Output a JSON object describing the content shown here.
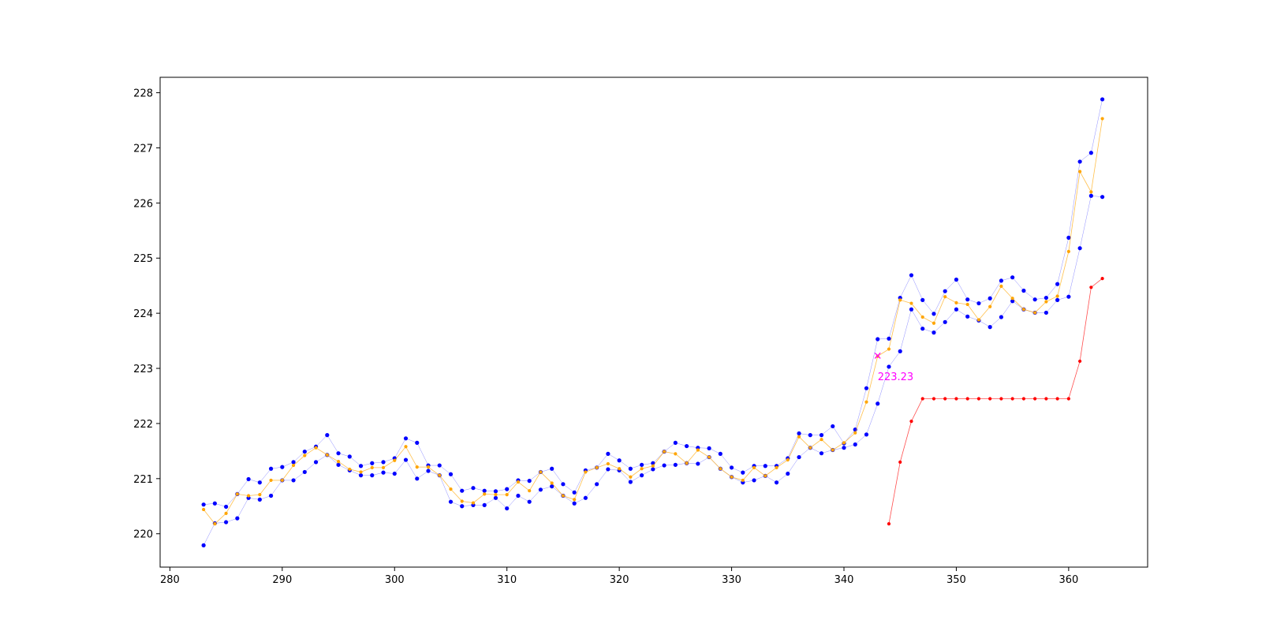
{
  "chart_data": {
    "type": "line",
    "x": [
      283,
      284,
      285,
      286,
      287,
      288,
      289,
      290,
      291,
      292,
      293,
      294,
      295,
      296,
      297,
      298,
      299,
      300,
      301,
      302,
      303,
      304,
      305,
      306,
      307,
      308,
      309,
      310,
      311,
      312,
      313,
      314,
      315,
      316,
      317,
      318,
      319,
      320,
      321,
      322,
      323,
      324,
      325,
      326,
      327,
      328,
      329,
      330,
      331,
      332,
      333,
      334,
      335,
      336,
      337,
      338,
      339,
      340,
      341,
      342,
      343,
      344,
      345,
      346,
      347,
      348,
      349,
      350,
      351,
      352,
      353,
      354,
      355,
      356,
      357,
      358,
      359,
      360,
      361,
      362,
      363
    ],
    "series": [
      {
        "color": "#0000ff",
        "values": [
          220.53,
          220.55,
          220.49,
          220.72,
          220.99,
          220.93,
          221.18,
          221.21,
          221.3,
          221.49,
          221.58,
          221.79,
          221.46,
          221.4,
          221.23,
          221.28,
          221.3,
          221.37,
          221.73,
          221.65,
          221.24,
          221.24,
          221.08,
          220.78,
          220.83,
          220.78,
          220.77,
          220.81,
          220.97,
          220.96,
          221.12,
          221.18,
          220.9,
          220.75,
          221.15,
          221.2,
          221.45,
          221.33,
          221.18,
          221.25,
          221.28,
          221.49,
          221.65,
          221.59,
          221.56,
          221.55,
          221.45,
          221.2,
          221.11,
          221.23,
          221.23,
          221.23,
          221.37,
          221.82,
          221.79,
          221.79,
          221.95,
          221.64,
          221.89,
          222.64,
          223.53,
          223.54,
          224.28,
          224.69,
          224.24,
          223.99,
          224.4,
          224.61,
          224.25,
          224.18,
          224.27,
          224.59,
          224.65,
          224.41,
          224.25,
          224.28,
          224.53,
          225.37,
          226.75,
          226.91,
          227.88
        ]
      },
      {
        "color": "#0000ff",
        "values": [
          219.79,
          220.19,
          220.21,
          220.28,
          220.65,
          220.62,
          220.69,
          220.97,
          220.97,
          221.12,
          221.3,
          221.43,
          221.25,
          221.15,
          221.06,
          221.06,
          221.11,
          221.09,
          221.34,
          221.0,
          221.14,
          221.06,
          220.58,
          220.5,
          220.52,
          220.52,
          220.65,
          220.46,
          220.69,
          220.58,
          220.8,
          220.86,
          220.69,
          220.55,
          220.65,
          220.9,
          221.17,
          221.15,
          220.94,
          221.06,
          221.17,
          221.24,
          221.25,
          221.28,
          221.27,
          221.39,
          221.18,
          221.03,
          220.93,
          220.97,
          221.05,
          220.93,
          221.09,
          221.39,
          221.56,
          221.46,
          221.52,
          221.56,
          221.62,
          221.8,
          222.36,
          223.03,
          223.31,
          224.07,
          223.72,
          223.65,
          223.84,
          224.07,
          223.94,
          223.87,
          223.75,
          223.93,
          224.22,
          224.07,
          224.01,
          224.01,
          224.24,
          224.3,
          225.18,
          226.13,
          226.11
        ]
      },
      {
        "color": "#ffa500",
        "values": [
          220.44,
          220.18,
          220.37,
          220.72,
          220.69,
          220.71,
          220.97,
          220.97,
          221.24,
          221.42,
          221.56,
          221.43,
          221.31,
          221.17,
          221.12,
          221.2,
          221.2,
          221.33,
          221.58,
          221.21,
          221.21,
          221.06,
          220.81,
          220.59,
          220.56,
          220.72,
          220.71,
          220.71,
          220.94,
          220.78,
          221.12,
          220.92,
          220.69,
          220.62,
          221.12,
          221.2,
          221.27,
          221.18,
          221.03,
          221.18,
          221.23,
          221.49,
          221.45,
          221.28,
          221.52,
          221.39,
          221.18,
          221.03,
          220.97,
          221.2,
          221.05,
          221.2,
          221.34,
          221.76,
          221.56,
          221.71,
          221.52,
          221.65,
          221.83,
          222.39,
          223.22,
          223.35,
          224.24,
          224.18,
          223.93,
          223.82,
          224.3,
          224.19,
          224.16,
          223.88,
          224.12,
          224.49,
          224.27,
          224.07,
          224.01,
          224.21,
          224.31,
          225.12,
          226.57,
          226.2,
          227.53
        ]
      },
      {
        "color": "#ff0000",
        "x": [
          344,
          345,
          346,
          347,
          348,
          349,
          350,
          351,
          352,
          353,
          354,
          355,
          356,
          357,
          358,
          359,
          360,
          361,
          362,
          363
        ],
        "values": [
          220.18,
          221.3,
          222.04,
          222.45,
          222.45,
          222.45,
          222.45,
          222.45,
          222.45,
          222.45,
          222.45,
          222.45,
          222.45,
          222.45,
          222.45,
          222.45,
          222.45,
          223.13,
          224.47,
          224.63
        ]
      }
    ],
    "annotation": {
      "x": 343,
      "y": 223.23,
      "color": "#ff00ff"
    },
    "xlim": [
      279.13,
      367.03
    ],
    "ylim": [
      219.395,
      228.28
    ],
    "xticks": [
      280,
      290,
      300,
      310,
      320,
      330,
      340,
      350,
      360
    ],
    "yticks": [
      220,
      221,
      222,
      223,
      224,
      225,
      226,
      227,
      228
    ]
  }
}
